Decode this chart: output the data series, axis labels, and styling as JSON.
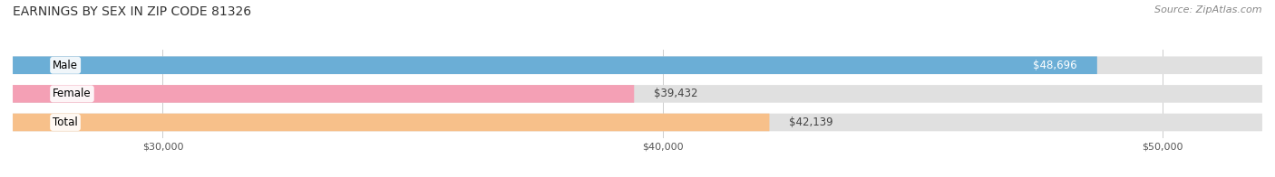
{
  "title": "EARNINGS BY SEX IN ZIP CODE 81326",
  "source": "Source: ZipAtlas.com",
  "categories": [
    "Male",
    "Female",
    "Total"
  ],
  "values": [
    48696,
    39432,
    42139
  ],
  "bar_colors": [
    "#6baed6",
    "#f4a0b5",
    "#f7c08a"
  ],
  "bar_bg_color": "#e8e8e8",
  "value_labels": [
    "$48,696",
    "$39,432",
    "$42,139"
  ],
  "xlim_min": 27000,
  "xlim_max": 52000,
  "xticks": [
    30000,
    40000,
    50000
  ],
  "xtick_labels": [
    "$30,000",
    "$40,000",
    "$50,000"
  ],
  "title_fontsize": 10,
  "source_fontsize": 8,
  "bar_label_fontsize": 8.5,
  "value_fontsize": 8.5,
  "figsize": [
    14.06,
    1.96
  ],
  "dpi": 100
}
